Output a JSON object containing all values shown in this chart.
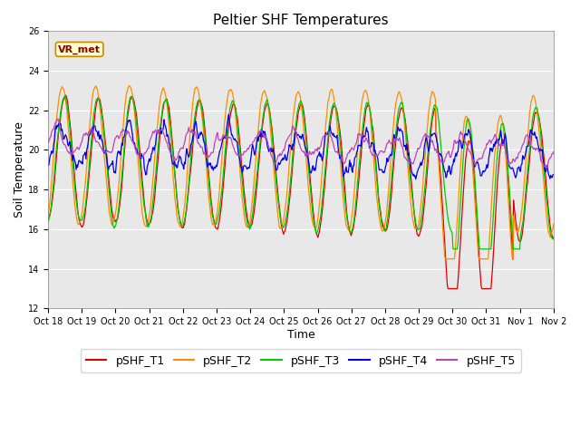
{
  "title": "Peltier SHF Temperatures",
  "xlabel": "Time",
  "ylabel": "Soil Temperature",
  "ylim": [
    12,
    26
  ],
  "yticks": [
    12,
    14,
    16,
    18,
    20,
    22,
    24,
    26
  ],
  "xtick_labels": [
    "Oct 18",
    "Oct 19",
    "Oct 20",
    "Oct 21",
    "Oct 22",
    "Oct 23",
    "Oct 24",
    "Oct 25",
    "Oct 26",
    "Oct 27",
    "Oct 28",
    "Oct 29",
    "Oct 30",
    "Oct 31",
    "Nov 1",
    "Nov 2"
  ],
  "line_colors": [
    "#dd0000",
    "#ff8c00",
    "#00cc00",
    "#0000ee",
    "#bb44bb"
  ],
  "line_labels": [
    "pSHF_T1",
    "pSHF_T2",
    "pSHF_T3",
    "pSHF_T4",
    "pSHF_T5"
  ],
  "vr_met_label": "VR_met",
  "bg_color": "#e8e8e8",
  "fig_bg_color": "#ffffff",
  "title_fontsize": 11,
  "axis_label_fontsize": 9,
  "tick_fontsize": 7,
  "legend_fontsize": 9
}
